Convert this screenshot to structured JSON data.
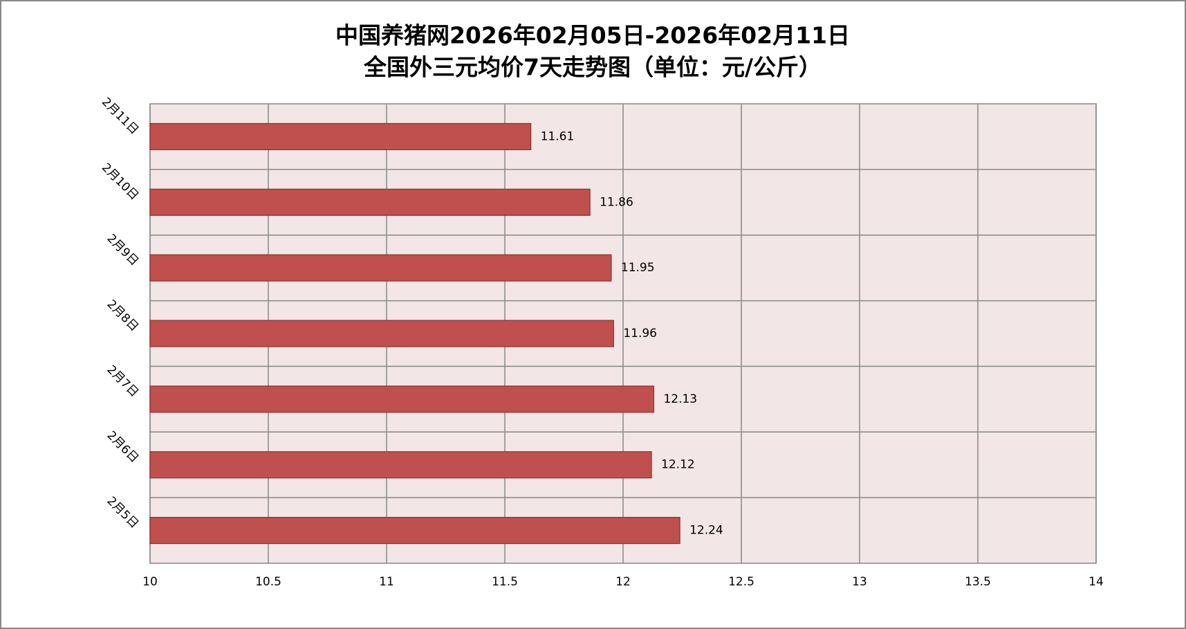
{
  "chart_data": {
    "type": "bar",
    "orientation": "horizontal",
    "title": [
      "中国养猪网2026年02月05日-2026年02月11日",
      "全国外三元均价7天走势图（单位：元/公斤）"
    ],
    "categories": [
      "2月5日",
      "2月6日",
      "2月7日",
      "2月8日",
      "2月9日",
      "2月10日",
      "2月11日"
    ],
    "values": [
      12.24,
      12.12,
      12.13,
      11.96,
      11.95,
      11.86,
      11.61
    ],
    "color": "#c0504d",
    "xlim": [
      10,
      14
    ],
    "xticks": [
      10,
      10.5,
      11,
      11.5,
      12,
      12.5,
      13,
      13.5,
      14
    ],
    "grid": true
  }
}
